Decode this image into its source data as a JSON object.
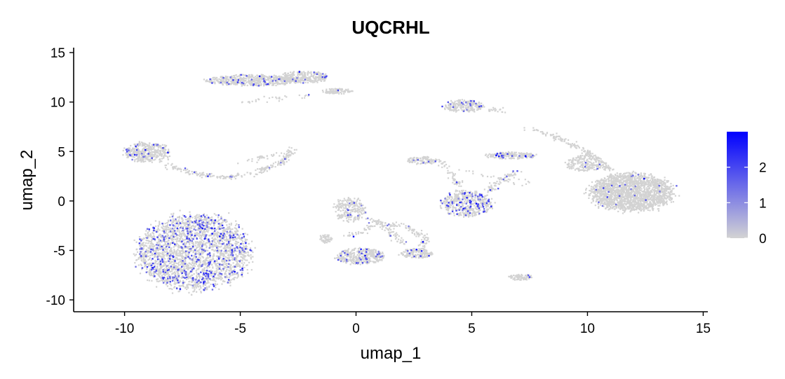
{
  "chart_data": {
    "type": "scatter",
    "title": "UQCRHL",
    "xlabel": "umap_1",
    "ylabel": "umap_2",
    "xlim": [
      -12.2,
      15.2
    ],
    "ylim": [
      -11.2,
      15.5
    ],
    "xticks": [
      -10,
      -5,
      0,
      5,
      10,
      15
    ],
    "xtick_labels": [
      "-10",
      "-5",
      "0",
      "5",
      "10",
      "15"
    ],
    "yticks": [
      -10,
      -5,
      0,
      5,
      10,
      15
    ],
    "ytick_labels": [
      "-10",
      "-5",
      "0",
      "5",
      "10",
      "15"
    ],
    "grid": false,
    "legend": {
      "placement": "right",
      "type": "colorbar",
      "min": 0,
      "max": 3,
      "ticks": [
        0,
        1,
        2
      ],
      "tick_labels": [
        "0",
        "1",
        "2"
      ],
      "low_color": "#d3d3d3",
      "high_color": "#0000ff"
    },
    "clusters": [
      {
        "name": "",
        "cx": -7.0,
        "cy": -5.2,
        "rx": 2.4,
        "ry": 3.8,
        "n": 2600,
        "expr_frac": 0.16
      },
      {
        "name": "",
        "cx": -9.0,
        "cy": 4.9,
        "rx": 1.0,
        "ry": 1.0,
        "n": 420,
        "expr_frac": 0.06
      },
      {
        "name": "",
        "cx": -4.5,
        "cy": 12.2,
        "rx": 2.0,
        "ry": 0.55,
        "n": 520,
        "expr_frac": 0.07
      },
      {
        "name": "",
        "cx": -2.3,
        "cy": 12.5,
        "rx": 1.1,
        "ry": 0.6,
        "n": 300,
        "expr_frac": 0.05
      },
      {
        "name": "",
        "cx": -0.8,
        "cy": 11.1,
        "rx": 0.6,
        "ry": 0.3,
        "n": 90,
        "expr_frac": 0.02
      },
      {
        "name": "",
        "cx": 11.9,
        "cy": 0.9,
        "rx": 1.8,
        "ry": 1.9,
        "n": 1900,
        "expr_frac": 0.01
      },
      {
        "name": "",
        "cx": 9.9,
        "cy": 3.8,
        "rx": 0.8,
        "ry": 0.8,
        "n": 200,
        "expr_frac": 0.02
      },
      {
        "name": "",
        "cx": 4.8,
        "cy": -0.3,
        "rx": 1.1,
        "ry": 1.3,
        "n": 500,
        "expr_frac": 0.12
      },
      {
        "name": "",
        "cx": 4.6,
        "cy": 9.6,
        "rx": 0.9,
        "ry": 0.6,
        "n": 220,
        "expr_frac": 0.07
      },
      {
        "name": "",
        "cx": 6.7,
        "cy": 4.6,
        "rx": 1.1,
        "ry": 0.35,
        "n": 200,
        "expr_frac": 0.08
      },
      {
        "name": "",
        "cx": 2.9,
        "cy": 4.1,
        "rx": 0.7,
        "ry": 0.35,
        "n": 110,
        "expr_frac": 0.05
      },
      {
        "name": "",
        "cx": 0.2,
        "cy": -5.6,
        "rx": 1.0,
        "ry": 0.8,
        "n": 380,
        "expr_frac": 0.07
      },
      {
        "name": "",
        "cx": 2.6,
        "cy": -5.3,
        "rx": 0.7,
        "ry": 0.5,
        "n": 150,
        "expr_frac": 0.07
      },
      {
        "name": "",
        "cx": -0.3,
        "cy": -0.9,
        "rx": 0.7,
        "ry": 1.2,
        "n": 220,
        "expr_frac": 0.05
      },
      {
        "name": "",
        "cx": 7.1,
        "cy": -7.7,
        "rx": 0.5,
        "ry": 0.3,
        "n": 80,
        "expr_frac": 0.03
      },
      {
        "name": "",
        "cx": -1.3,
        "cy": -3.8,
        "rx": 0.3,
        "ry": 0.4,
        "n": 60,
        "expr_frac": 0.03
      }
    ],
    "trails": [
      {
        "name": "",
        "points": [
          [
            -8.2,
            3.6
          ],
          [
            -7.0,
            2.8
          ],
          [
            -5.8,
            2.3
          ],
          [
            -4.5,
            2.7
          ],
          [
            -3.3,
            3.8
          ],
          [
            -2.7,
            5.4
          ]
        ],
        "n": 220,
        "expr_frac": 0.04
      },
      {
        "name": "",
        "points": [
          [
            -5.0,
            3.8
          ],
          [
            -4.0,
            4.4
          ],
          [
            -3.0,
            4.9
          ]
        ],
        "n": 30,
        "expr_frac": 0.02
      },
      {
        "name": "",
        "points": [
          [
            -5.0,
            9.9
          ],
          [
            -3.5,
            10.4
          ],
          [
            -1.8,
            10.7
          ]
        ],
        "n": 30,
        "expr_frac": 0.01
      },
      {
        "name": "",
        "points": [
          [
            7.5,
            7.3
          ],
          [
            8.6,
            6.5
          ],
          [
            9.6,
            5.4
          ],
          [
            10.4,
            4.3
          ],
          [
            11.0,
            3.1
          ]
        ],
        "n": 160,
        "expr_frac": 0.02
      },
      {
        "name": "",
        "points": [
          [
            5.8,
            9.3
          ],
          [
            6.5,
            9.0
          ]
        ],
        "n": 20,
        "expr_frac": 0.02
      },
      {
        "name": "",
        "points": [
          [
            -0.4,
            -3.6
          ],
          [
            1.0,
            -2.2
          ],
          [
            2.1,
            -2.5
          ],
          [
            3.0,
            -3.8
          ],
          [
            2.8,
            -5.0
          ]
        ],
        "n": 140,
        "expr_frac": 0.04
      },
      {
        "name": "",
        "points": [
          [
            0.5,
            -1.6
          ],
          [
            1.4,
            -2.8
          ],
          [
            2.0,
            -4.4
          ]
        ],
        "n": 70,
        "expr_frac": 0.03
      },
      {
        "name": "",
        "points": [
          [
            5.7,
            0.9
          ],
          [
            6.1,
            1.8
          ],
          [
            6.6,
            2.5
          ],
          [
            7.0,
            3.0
          ]
        ],
        "n": 70,
        "expr_frac": 0.03
      },
      {
        "name": "",
        "points": [
          [
            3.6,
            4.0
          ],
          [
            4.1,
            2.8
          ],
          [
            4.5,
            1.6
          ]
        ],
        "n": 50,
        "expr_frac": 0.03
      },
      {
        "name": "",
        "points": [
          [
            4.5,
            3.2
          ],
          [
            5.6,
            2.5
          ],
          [
            6.8,
            2.0
          ],
          [
            7.5,
            1.8
          ]
        ],
        "n": 24,
        "expr_frac": 0.02
      }
    ]
  }
}
